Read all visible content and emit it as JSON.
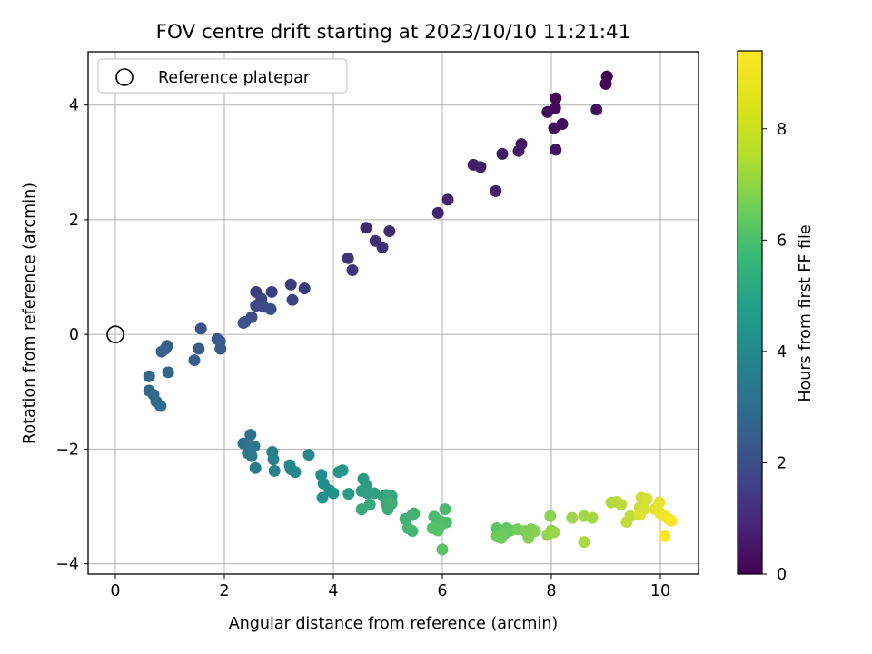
{
  "chart_data": {
    "type": "scatter",
    "title": "FOV centre drift starting at 2023/10/10 11:21:41",
    "xlabel": "Angular distance from reference (arcmin)",
    "ylabel": "Rotation from reference (arcmin)",
    "xlim": [
      -0.5,
      10.7
    ],
    "ylim": [
      -4.18,
      4.93
    ],
    "xticks": [
      0,
      2,
      4,
      6,
      8,
      10
    ],
    "yticks": [
      -4,
      -2,
      0,
      2,
      4
    ],
    "grid": true,
    "legend": {
      "position": "top-left",
      "entries": [
        "Reference platepar"
      ]
    },
    "reference": {
      "x": 0,
      "y": 0
    },
    "colorbar": {
      "label": "Hours from first FF file",
      "colormap": "viridis",
      "range": [
        0,
        9.4
      ],
      "ticks": [
        0,
        2,
        4,
        6,
        8
      ]
    },
    "series": [
      {
        "points": [
          [
            9.02,
            4.5
          ],
          [
            9.0,
            4.37
          ],
          [
            8.08,
            4.12
          ],
          [
            8.07,
            3.95
          ],
          [
            7.93,
            3.88
          ],
          [
            8.2,
            3.67
          ],
          [
            8.83,
            3.92
          ],
          [
            8.05,
            3.6
          ],
          [
            8.08,
            3.22
          ],
          [
            7.45,
            3.32
          ],
          [
            7.4,
            3.2
          ],
          [
            7.1,
            3.15
          ],
          [
            6.57,
            2.96
          ],
          [
            6.7,
            2.92
          ],
          [
            6.98,
            2.5
          ],
          [
            6.1,
            2.35
          ],
          [
            5.92,
            2.12
          ],
          [
            4.6,
            1.86
          ],
          [
            5.03,
            1.8
          ],
          [
            4.77,
            1.63
          ],
          [
            4.9,
            1.52
          ],
          [
            4.27,
            1.33
          ],
          [
            4.35,
            1.12
          ],
          [
            3.22,
            0.87
          ],
          [
            3.47,
            0.8
          ],
          [
            2.58,
            0.74
          ],
          [
            2.87,
            0.74
          ],
          [
            3.25,
            0.6
          ],
          [
            2.68,
            0.62
          ],
          [
            2.58,
            0.5
          ],
          [
            2.72,
            0.48
          ],
          [
            2.85,
            0.44
          ],
          [
            2.5,
            0.3
          ],
          [
            2.35,
            0.2
          ],
          [
            2.38,
            0.22
          ],
          [
            1.57,
            0.1
          ],
          [
            1.87,
            -0.08
          ],
          [
            1.92,
            -0.12
          ],
          [
            1.93,
            -0.25
          ],
          [
            1.53,
            -0.25
          ],
          [
            1.45,
            -0.45
          ],
          [
            0.95,
            -0.2
          ],
          [
            0.92,
            -0.25
          ],
          [
            0.85,
            -0.3
          ],
          [
            0.97,
            -0.66
          ],
          [
            0.62,
            -0.73
          ],
          [
            0.62,
            -0.98
          ],
          [
            0.7,
            -1.05
          ],
          [
            0.75,
            -1.17
          ],
          [
            0.83,
            -1.25
          ]
        ]
      },
      {
        "points": [
          [
            2.48,
            -1.75
          ],
          [
            2.35,
            -1.9
          ],
          [
            2.45,
            -1.97
          ],
          [
            2.55,
            -1.95
          ],
          [
            2.43,
            -2.07
          ],
          [
            2.5,
            -2.12
          ],
          [
            2.57,
            -2.33
          ],
          [
            2.88,
            -2.05
          ],
          [
            2.9,
            -2.18
          ],
          [
            2.92,
            -2.38
          ],
          [
            3.2,
            -2.28
          ],
          [
            3.22,
            -2.35
          ],
          [
            3.3,
            -2.4
          ],
          [
            3.55,
            -2.1
          ],
          [
            3.78,
            -2.45
          ],
          [
            3.82,
            -2.6
          ],
          [
            3.93,
            -2.72
          ],
          [
            4.0,
            -2.77
          ],
          [
            3.8,
            -2.85
          ],
          [
            4.1,
            -2.4
          ],
          [
            4.17,
            -2.37
          ],
          [
            4.28,
            -2.78
          ],
          [
            4.55,
            -2.52
          ],
          [
            4.6,
            -2.63
          ],
          [
            4.52,
            -2.73
          ],
          [
            4.63,
            -2.77
          ],
          [
            4.75,
            -2.77
          ],
          [
            4.92,
            -2.83
          ],
          [
            4.97,
            -2.8
          ],
          [
            5.07,
            -2.82
          ],
          [
            4.67,
            -2.97
          ],
          [
            4.52,
            -3.05
          ],
          [
            4.97,
            -2.95
          ],
          [
            5.0,
            -3.05
          ],
          [
            5.07,
            -2.95
          ],
          [
            5.32,
            -3.22
          ],
          [
            5.45,
            -3.15
          ],
          [
            5.48,
            -3.12
          ],
          [
            5.37,
            -3.38
          ],
          [
            5.45,
            -3.43
          ],
          [
            5.85,
            -3.18
          ],
          [
            6.05,
            -3.05
          ],
          [
            5.95,
            -3.25
          ],
          [
            6.07,
            -3.28
          ],
          [
            5.98,
            -3.32
          ],
          [
            5.82,
            -3.38
          ],
          [
            5.92,
            -3.42
          ],
          [
            6.0,
            -3.75
          ]
        ]
      },
      {
        "points": [
          [
            7.0,
            -3.38
          ],
          [
            7.08,
            -3.42
          ],
          [
            7.18,
            -3.38
          ],
          [
            7.25,
            -3.42
          ],
          [
            7.15,
            -3.47
          ],
          [
            7.0,
            -3.52
          ],
          [
            7.08,
            -3.55
          ],
          [
            7.38,
            -3.4
          ],
          [
            7.52,
            -3.43
          ],
          [
            7.63,
            -3.4
          ],
          [
            7.58,
            -3.55
          ],
          [
            7.7,
            -3.43
          ],
          [
            7.98,
            -3.17
          ],
          [
            8.0,
            -3.42
          ],
          [
            7.93,
            -3.5
          ],
          [
            8.05,
            -3.45
          ],
          [
            8.38,
            -3.2
          ],
          [
            8.6,
            -3.17
          ],
          [
            8.75,
            -3.2
          ],
          [
            8.6,
            -3.62
          ],
          [
            9.1,
            -2.93
          ],
          [
            9.2,
            -2.92
          ],
          [
            9.28,
            -2.97
          ],
          [
            9.45,
            -3.17
          ],
          [
            9.38,
            -3.27
          ],
          [
            9.62,
            -3.02
          ],
          [
            9.65,
            -2.85
          ],
          [
            9.75,
            -2.87
          ],
          [
            9.7,
            -3.05
          ],
          [
            9.62,
            -3.15
          ],
          [
            9.9,
            -3.05
          ],
          [
            9.98,
            -2.93
          ],
          [
            10.0,
            -3.12
          ],
          [
            10.08,
            -3.17
          ],
          [
            10.15,
            -3.22
          ],
          [
            10.2,
            -3.25
          ],
          [
            10.08,
            -3.52
          ]
        ]
      }
    ],
    "colors": [
      "#440154",
      "#3b528b",
      "#21918c",
      "#5ec962",
      "#fde725"
    ]
  }
}
